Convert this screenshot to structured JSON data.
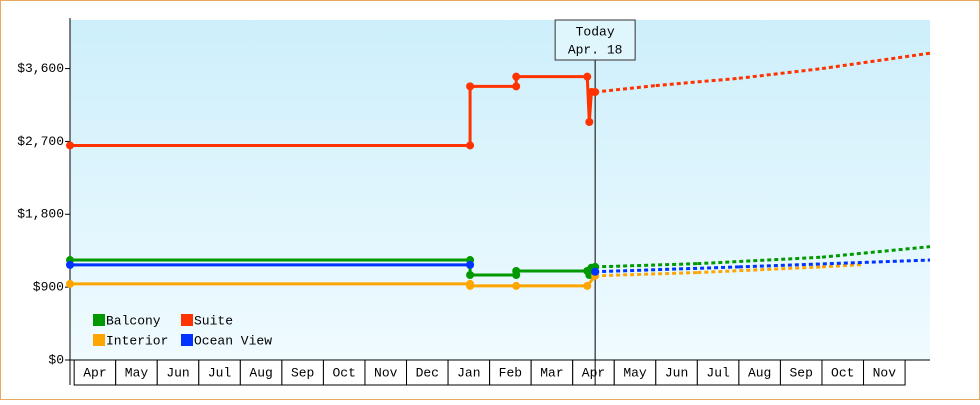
{
  "chart_data": {
    "type": "line",
    "categories": [
      "Apr",
      "May",
      "Jun",
      "Jul",
      "Aug",
      "Sep",
      "Oct",
      "Nov",
      "Dec",
      "Jan",
      "Feb",
      "Mar",
      "Apr",
      "May",
      "Jun",
      "Jul",
      "Aug",
      "Sep",
      "Oct",
      "Nov"
    ],
    "xlim": [
      -0.1,
      20.6
    ],
    "ylim": [
      0,
      4200
    ],
    "yticks": [
      {
        "value": 0,
        "label": "$0"
      },
      {
        "value": 900,
        "label": "$900"
      },
      {
        "value": 1800,
        "label": "$1,800"
      },
      {
        "value": 2700,
        "label": "$2,700"
      },
      {
        "value": 3600,
        "label": "$3,600"
      }
    ],
    "today": {
      "x": 12.54,
      "label": [
        "Today",
        "Apr. 18"
      ]
    },
    "series": [
      {
        "name": "Balcony",
        "color": "#009900",
        "x": [
          -0.1,
          9.53,
          9.53,
          10.64,
          10.64,
          12.35,
          12.4,
          12.45,
          12.54,
          15,
          18,
          20.6
        ],
        "values": [
          1235,
          1235,
          1050,
          1050,
          1100,
          1100,
          1050,
          1140,
          1150,
          1190,
          1270,
          1400
        ]
      },
      {
        "name": "Suite",
        "color": "#ff3300",
        "x": [
          -0.1,
          9.53,
          9.53,
          10.64,
          10.64,
          12.35,
          12.4,
          12.45,
          12.54,
          14,
          16,
          18,
          20.6
        ],
        "values": [
          2650,
          2650,
          3380,
          3380,
          3500,
          3500,
          2940,
          3310,
          3310,
          3390,
          3480,
          3600,
          3790
        ]
      },
      {
        "name": "Interior",
        "color": "#ffa500",
        "x": [
          -0.1,
          9.53,
          9.53,
          10.64,
          12.35,
          12.54,
          15,
          18,
          19
        ],
        "values": [
          940,
          940,
          915,
          915,
          915,
          1040,
          1080,
          1150,
          1180
        ]
      },
      {
        "name": "Ocean View",
        "color": "#0033ff",
        "x": [
          -0.1,
          9.53,
          null,
          12.54,
          16,
          20.6
        ],
        "values": [
          1175,
          1175,
          null,
          1090,
          1150,
          1235
        ]
      }
    ]
  }
}
